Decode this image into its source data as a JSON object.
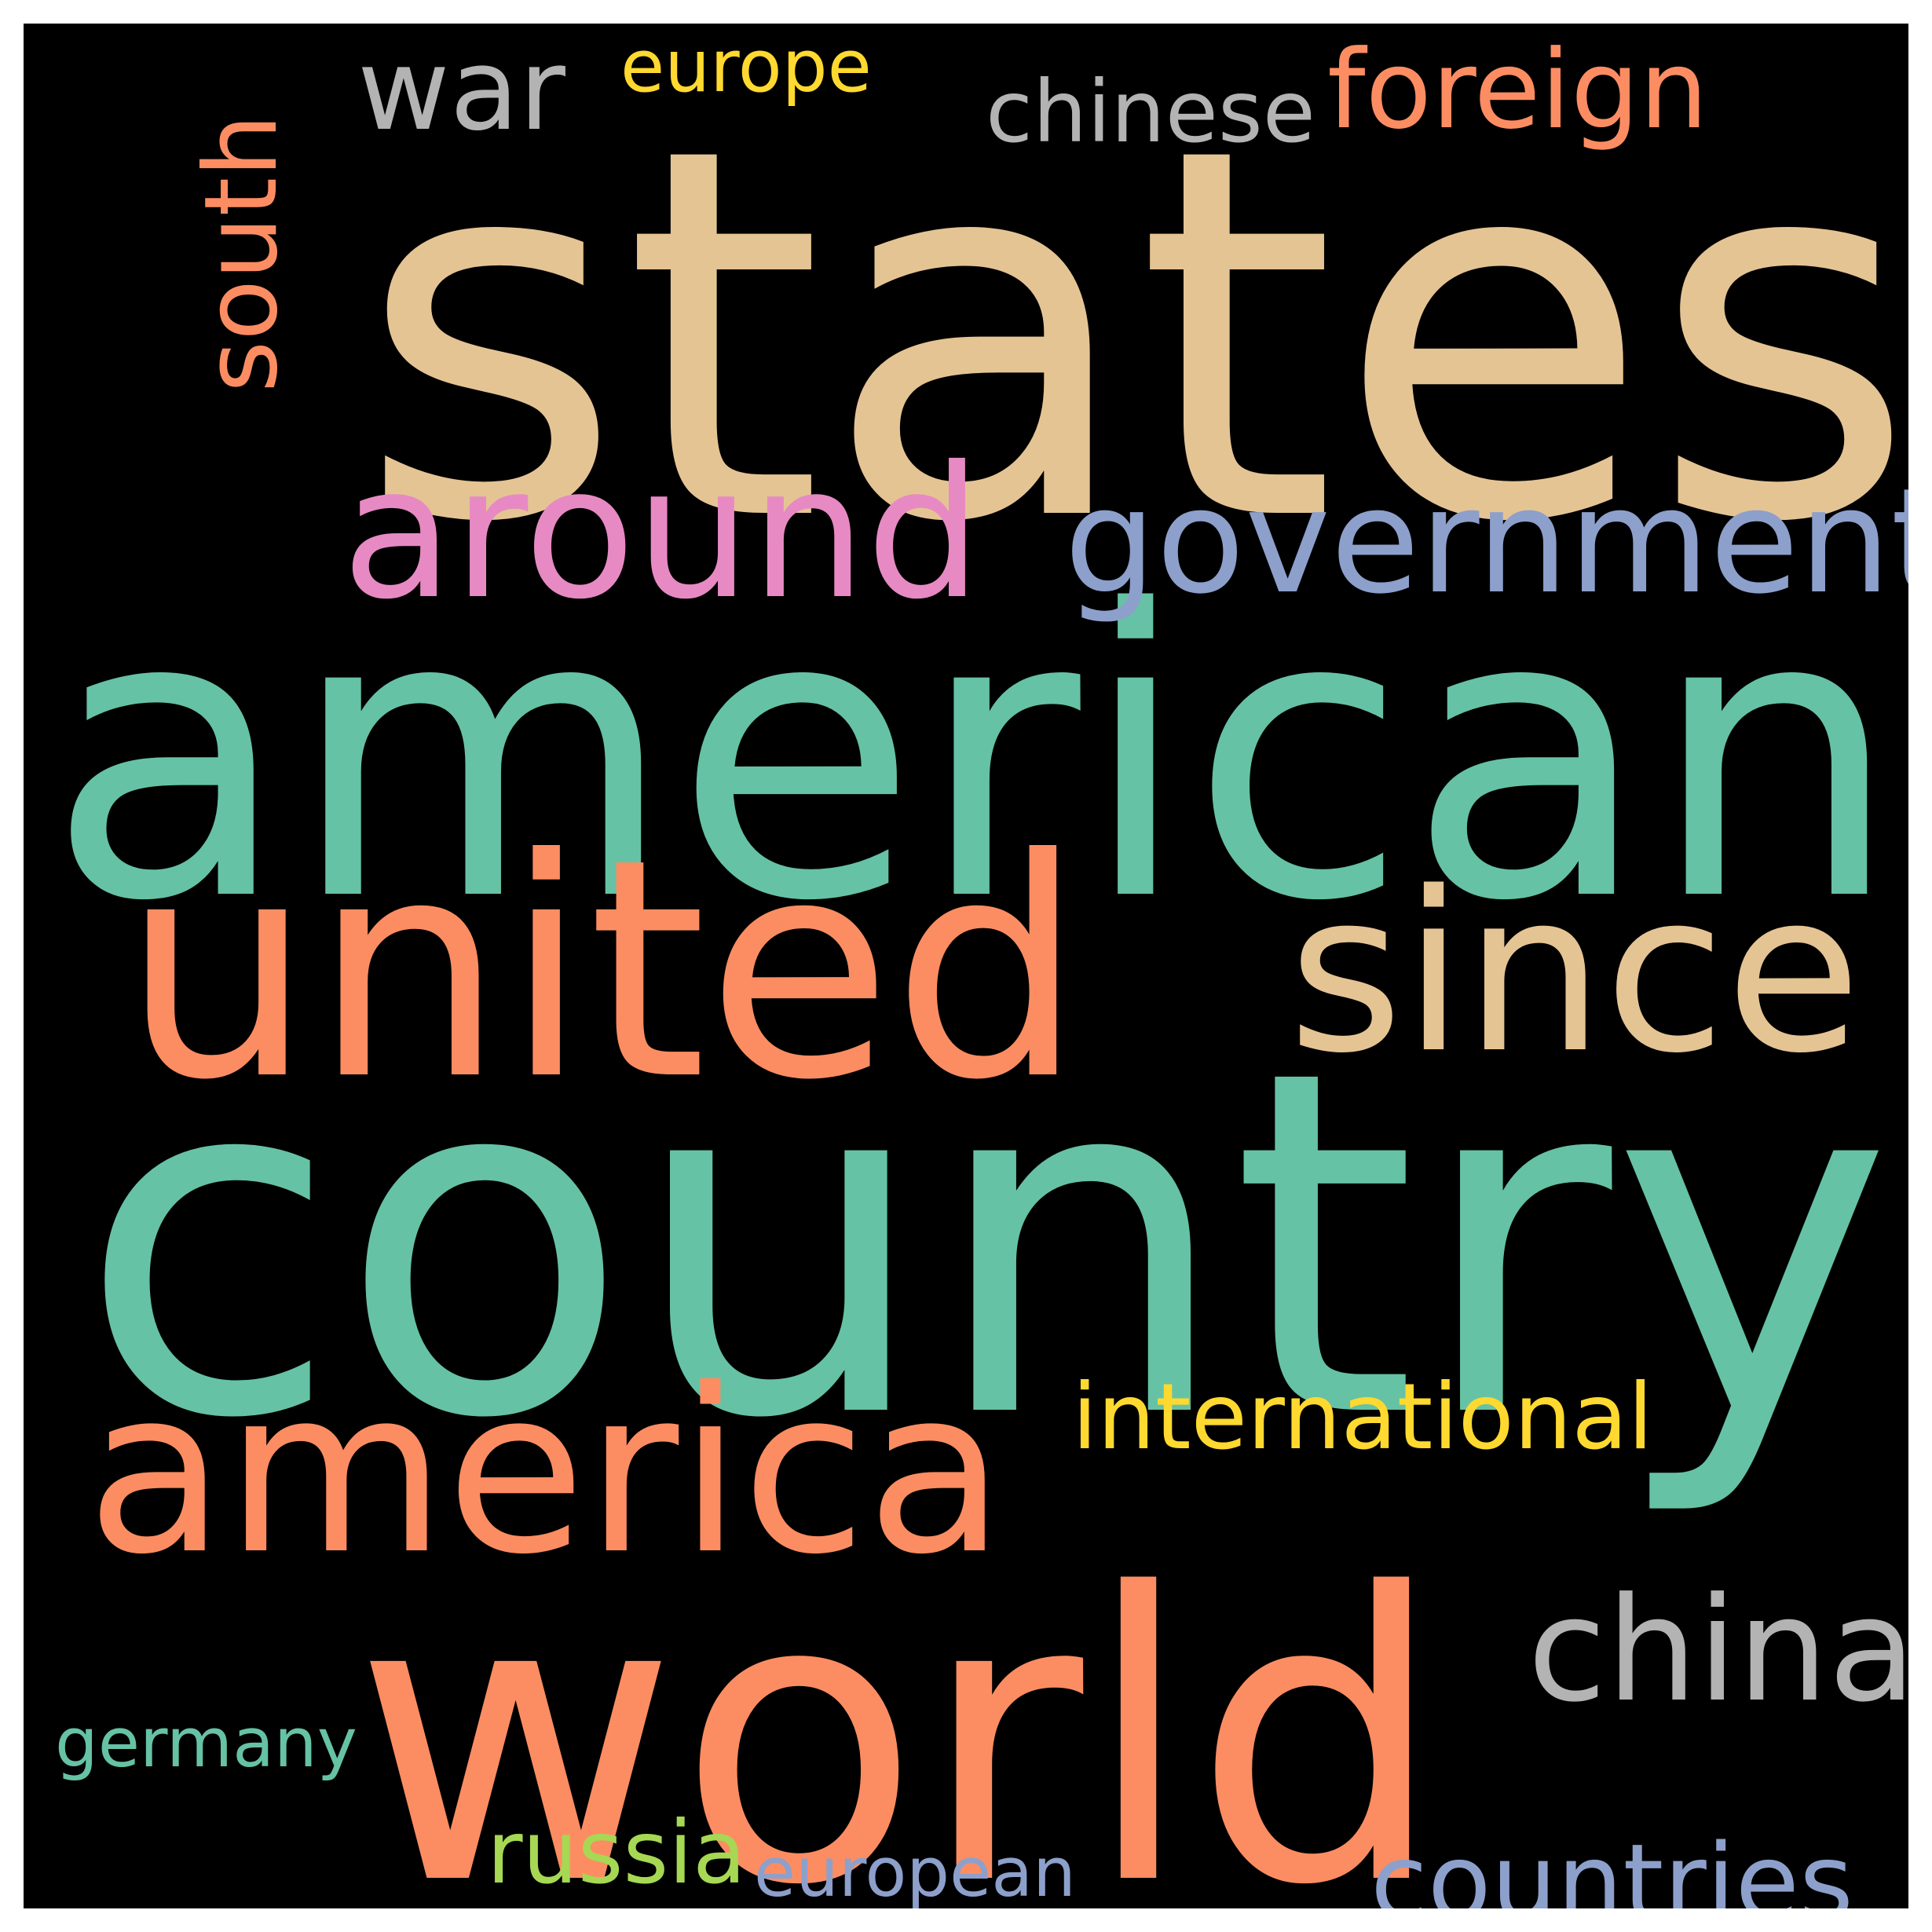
{
  "background": "#000000",
  "words": [
    {
      "id": "states",
      "text": "states",
      "color": "#e5c494"
    },
    {
      "id": "american",
      "text": "american",
      "color": "#66c2a5"
    },
    {
      "id": "country",
      "text": "country",
      "color": "#66c2a5"
    },
    {
      "id": "world",
      "text": "world",
      "color": "#fc8d62"
    },
    {
      "id": "united",
      "text": "united",
      "color": "#fc8d62"
    },
    {
      "id": "america",
      "text": "america",
      "color": "#fc8d62"
    },
    {
      "id": "around",
      "text": "around",
      "color": "#e78ac3"
    },
    {
      "id": "government",
      "text": "government",
      "color": "#8da0cb"
    },
    {
      "id": "since",
      "text": "since",
      "color": "#e5c494"
    },
    {
      "id": "china",
      "text": "china",
      "color": "#b3b3b3"
    },
    {
      "id": "war",
      "text": "war",
      "color": "#b3b3b3"
    },
    {
      "id": "foreign",
      "text": "foreign",
      "color": "#fc8d62"
    },
    {
      "id": "chinese",
      "text": "chinese",
      "color": "#b3b3b3"
    },
    {
      "id": "europe",
      "text": "europe",
      "color": "#ffd92f"
    },
    {
      "id": "south",
      "text": "south",
      "color": "#fc8d62"
    },
    {
      "id": "international",
      "text": "international",
      "color": "#ffd92f"
    },
    {
      "id": "countries",
      "text": "countries",
      "color": "#8da0cb"
    },
    {
      "id": "germany",
      "text": "germany",
      "color": "#66c2a5"
    },
    {
      "id": "russia",
      "text": "russia",
      "color": "#a6d854"
    },
    {
      "id": "european",
      "text": "european",
      "color": "#8da0cb"
    }
  ]
}
